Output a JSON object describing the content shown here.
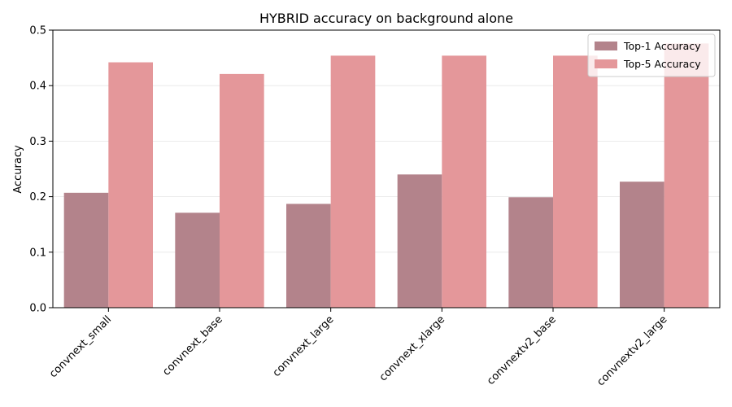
{
  "chart_data": {
    "type": "bar",
    "title": "HYBRID accuracy on background alone",
    "xlabel": "",
    "ylabel": "Accuracy",
    "ylim": [
      0,
      0.5
    ],
    "yticks": [
      "0.0",
      "0.1",
      "0.2",
      "0.3",
      "0.4",
      "0.5"
    ],
    "grid": "y",
    "legend_position": "top-right",
    "categories": [
      "convnext_small",
      "convnext_base",
      "convnext_large",
      "convnext_xlarge",
      "convnextv2_base",
      "convnextv2_large"
    ],
    "series": [
      {
        "name": "Top-1 Accuracy",
        "color": "#b3838b",
        "values": [
          0.207,
          0.171,
          0.187,
          0.24,
          0.199,
          0.227
        ]
      },
      {
        "name": "Top-5 Accuracy",
        "color": "#e4979a",
        "values": [
          0.442,
          0.421,
          0.454,
          0.454,
          0.454,
          0.476
        ]
      }
    ]
  }
}
